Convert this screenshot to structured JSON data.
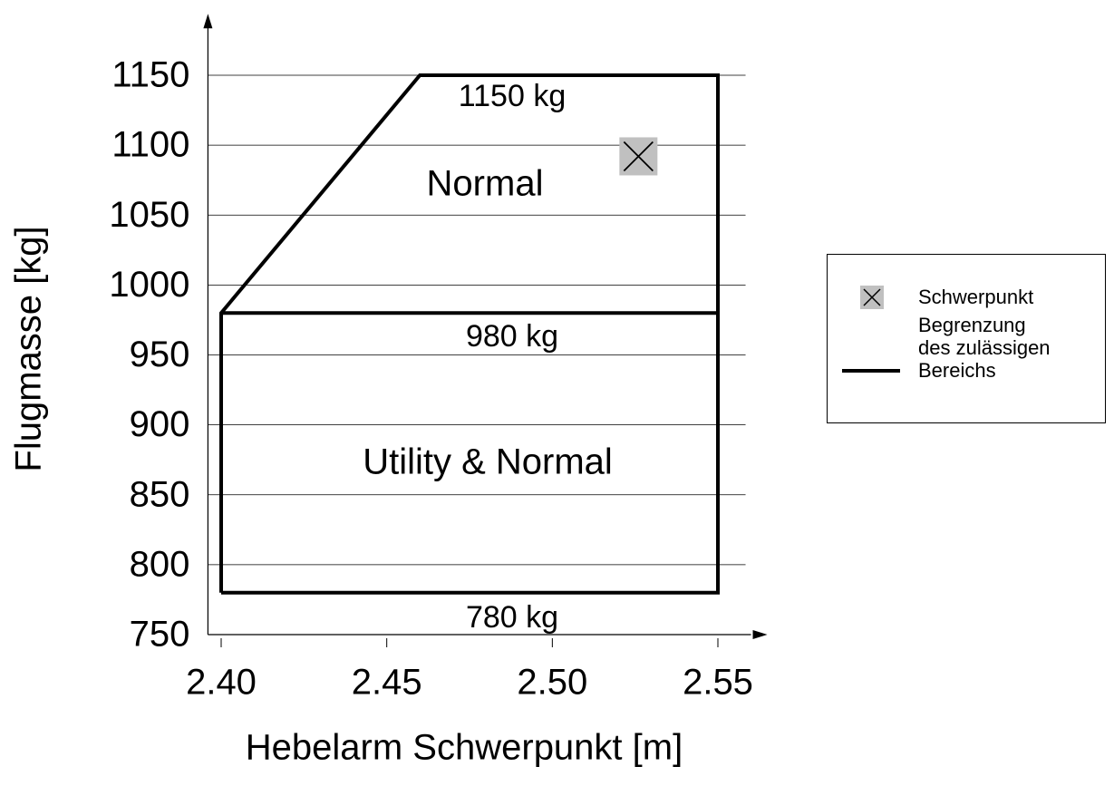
{
  "chart_data": {
    "type": "line",
    "xlabel": "Hebelarm Schwerpunkt [m]",
    "ylabel": "Flugmasse [kg]",
    "xlim": [
      2.396,
      2.56
    ],
    "ylim": [
      750,
      1190
    ],
    "xticks": [
      {
        "value": 2.4,
        "label": "2.40"
      },
      {
        "value": 2.45,
        "label": "2.45"
      },
      {
        "value": 2.5,
        "label": "2.50"
      },
      {
        "value": 2.55,
        "label": "2.55"
      }
    ],
    "yticks": [
      750,
      800,
      850,
      900,
      950,
      1000,
      1050,
      1100,
      1150
    ],
    "grid": true,
    "legend": "right",
    "series": [
      {
        "name": "Schwerpunkt",
        "color": "#c0c0c0",
        "marker": "x",
        "x": [
          2.526
        ],
        "values": [
          1092
        ]
      },
      {
        "name": "Begrenzung des zulässigen Bereichs",
        "color": "#000000",
        "x": [
          2.4,
          2.4,
          2.46,
          2.55,
          2.55,
          2.4,
          null,
          2.4,
          2.55
        ],
        "values": [
          780,
          980,
          1150,
          1150,
          780,
          780,
          null,
          980,
          980
        ]
      }
    ],
    "annotations": [
      "1150 kg",
      "Normal",
      "980 kg",
      "Utility & Normal",
      "780 kg"
    ]
  }
}
